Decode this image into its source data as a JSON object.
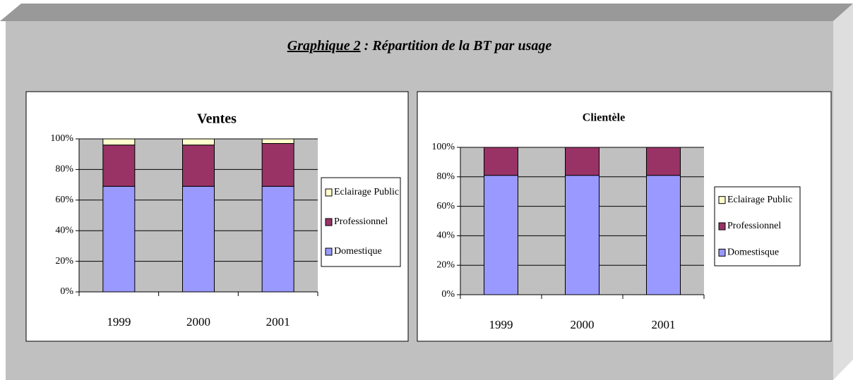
{
  "figure": {
    "label": "Graphique 2",
    "title": " : Répartition de la BT par usage"
  },
  "chart_data": [
    {
      "type": "bar",
      "stacked": true,
      "title": "Ventes",
      "categories": [
        "1999",
        "2000",
        "2001"
      ],
      "series": [
        {
          "name": "Domestique",
          "color": "#9999ff",
          "values": [
            69,
            69,
            69
          ]
        },
        {
          "name": "Professionnel",
          "color": "#993366",
          "values": [
            27,
            27,
            28
          ]
        },
        {
          "name": "Eclairage Public",
          "color": "#ffffcc",
          "values": [
            4,
            4,
            3
          ]
        }
      ],
      "ylim": [
        0,
        100
      ],
      "yticks": [
        {
          "value": 0,
          "label": "0%"
        },
        {
          "value": 20,
          "label": "20%"
        },
        {
          "value": 40,
          "label": "40%"
        },
        {
          "value": 60,
          "label": "60%"
        },
        {
          "value": 80,
          "label": "80%"
        },
        {
          "value": 100,
          "label": "100%"
        }
      ],
      "grid": true,
      "legend": "right"
    },
    {
      "type": "bar",
      "stacked": true,
      "title": "Clientèle",
      "categories": [
        "1999",
        "2000",
        "2001"
      ],
      "series": [
        {
          "name": "Domestisque",
          "color": "#9999ff",
          "values": [
            81,
            81,
            81
          ]
        },
        {
          "name": "Professionnel",
          "color": "#993366",
          "values": [
            19,
            19,
            19
          ]
        },
        {
          "name": "Eclairage Public",
          "color": "#ffffcc",
          "values": [
            0,
            0,
            0
          ]
        }
      ],
      "ylim": [
        0,
        100
      ],
      "yticks": [
        {
          "value": 0,
          "label": "0%"
        },
        {
          "value": 20,
          "label": "20%"
        },
        {
          "value": 40,
          "label": "40%"
        },
        {
          "value": 60,
          "label": "60%"
        },
        {
          "value": 80,
          "label": "80%"
        },
        {
          "value": 100,
          "label": "100%"
        }
      ],
      "grid": true,
      "legend": "right"
    }
  ]
}
